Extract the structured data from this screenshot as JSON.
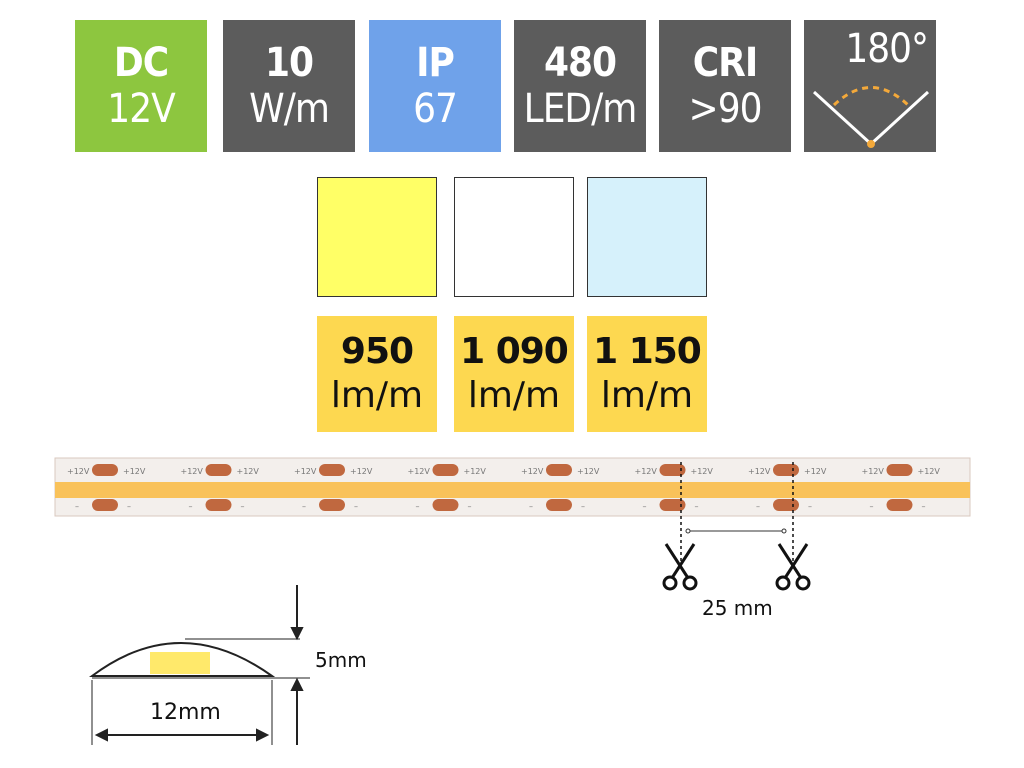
{
  "badges": [
    {
      "line1": "DC",
      "line2": "12V",
      "color": "#8dc63f"
    },
    {
      "line1": "10",
      "line2": "W/m",
      "color": "#5c5c5c"
    },
    {
      "line1": "IP",
      "line2": "67",
      "color": "#6fa2ea"
    },
    {
      "line1": "480",
      "line2": "LED/m",
      "color": "#5c5c5c"
    },
    {
      "line1": "CRI",
      "line2": ">90",
      "color": "#5c5c5c"
    },
    {
      "line1": "180°",
      "icon": "beam-angle-icon",
      "color": "#5c5c5c"
    }
  ],
  "swatches": [
    {
      "color": "#ffff66"
    },
    {
      "color": "#ffffff"
    },
    {
      "color": "#d6f1fb"
    }
  ],
  "lumens": [
    {
      "value": "950",
      "unit": "lm/m"
    },
    {
      "value": "1 090",
      "unit": "lm/m"
    },
    {
      "value": "1 150",
      "unit": "lm/m"
    }
  ],
  "strip": {
    "pad_plus": "+12V",
    "pad_minus": "–"
  },
  "cut": {
    "distance": "25 mm",
    "icon": "scissors-icon"
  },
  "profile": {
    "height": "5mm",
    "width": "12mm"
  }
}
